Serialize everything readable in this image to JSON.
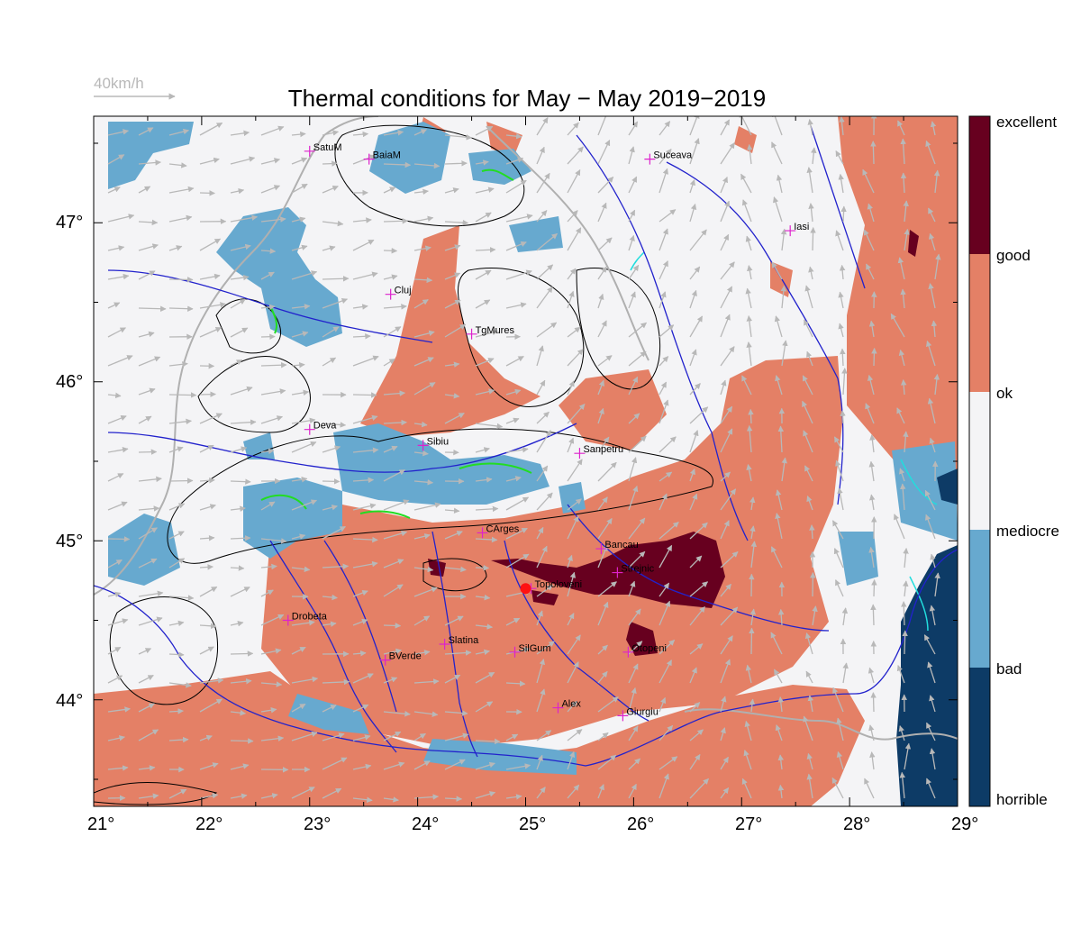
{
  "title": "Thermal conditions for May − May  2019−2019",
  "reference_arrow": {
    "label": "40km/h",
    "color": "#b8b8b8"
  },
  "colors": {
    "horrible": "#0d3b66",
    "bad": "#67a9cf",
    "mediocre": "#f4f4f6",
    "ok": "#f4f4f6",
    "good": "#e48066",
    "excellent": "#67001f",
    "rivers": "#2222cc",
    "contours": "#000000",
    "roads_borders": "#b0b0b0",
    "city_marker": "#dd22cc",
    "highlight_green": "#22dd22",
    "highlight_cyan": "#22dddd",
    "selected_point": "#ff1111"
  },
  "axes": {
    "x_ticks": [
      "21°",
      "22°",
      "23°",
      "24°",
      "25°",
      "26°",
      "27°",
      "28°",
      "29°"
    ],
    "y_ticks": [
      "47°",
      "46°",
      "45°",
      "44°"
    ],
    "lon_range": [
      21,
      29
    ],
    "lat_range": [
      43.33,
      47.67
    ]
  },
  "colorbar": {
    "labels": [
      "excellent",
      "good",
      "ok",
      "mediocre",
      "bad",
      "horrible"
    ]
  },
  "cities": [
    {
      "name": "SatuM",
      "lon": 23.0,
      "lat": 47.45
    },
    {
      "name": "BaiaM",
      "lon": 23.55,
      "lat": 47.4
    },
    {
      "name": "Suceava",
      "lon": 26.15,
      "lat": 47.4
    },
    {
      "name": "Iasi",
      "lon": 27.45,
      "lat": 46.95
    },
    {
      "name": "Cluj",
      "lon": 23.75,
      "lat": 46.55
    },
    {
      "name": "TgMures",
      "lon": 24.5,
      "lat": 46.3
    },
    {
      "name": "Deva",
      "lon": 23.0,
      "lat": 45.7
    },
    {
      "name": "Sibiu",
      "lon": 24.05,
      "lat": 45.6
    },
    {
      "name": "Sanpetru",
      "lon": 25.5,
      "lat": 45.55
    },
    {
      "name": "CArges",
      "lon": 24.6,
      "lat": 45.05
    },
    {
      "name": "Bancau",
      "lon": 25.7,
      "lat": 44.95
    },
    {
      "name": "Strejnic",
      "lon": 25.85,
      "lat": 44.8
    },
    {
      "name": "Topoloveni",
      "lon": 25.05,
      "lat": 44.7
    },
    {
      "name": "Drobeta",
      "lon": 22.8,
      "lat": 44.5
    },
    {
      "name": "Slatina",
      "lon": 24.25,
      "lat": 44.35
    },
    {
      "name": "SilGum",
      "lon": 24.9,
      "lat": 44.3
    },
    {
      "name": "Otopeni",
      "lon": 25.95,
      "lat": 44.3
    },
    {
      "name": "BVerde",
      "lon": 23.7,
      "lat": 44.25
    },
    {
      "name": "Alex",
      "lon": 25.3,
      "lat": 43.95
    },
    {
      "name": "Giurgiu",
      "lon": 25.9,
      "lat": 43.9
    }
  ],
  "selected_point": {
    "lon": 25.0,
    "lat": 44.7
  }
}
